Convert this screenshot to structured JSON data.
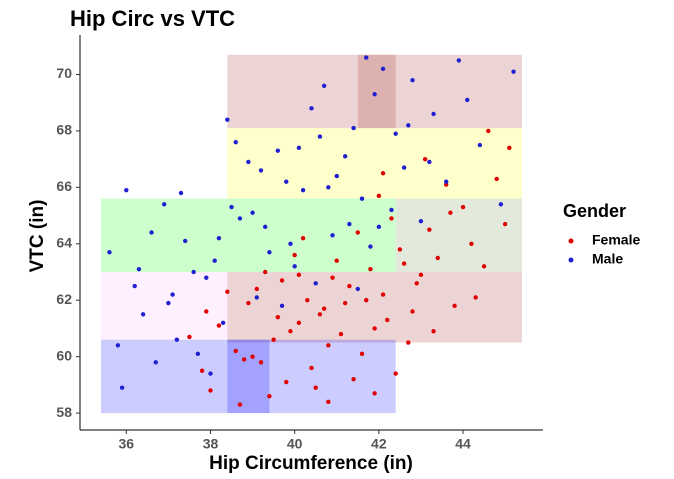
{
  "chart_data": {
    "type": "scatter",
    "title": "Hip Circ vs VTC",
    "x_label": "Hip Circumference (in)",
    "y_label": "VTC (in)",
    "legend_title": "Gender",
    "legend_position": "right",
    "grid": false,
    "xlim": [
      34.9,
      45.9
    ],
    "ylim": [
      57.4,
      71.4
    ],
    "xticks": [
      36,
      38,
      40,
      42,
      44
    ],
    "yticks": [
      58,
      60,
      62,
      64,
      66,
      68,
      70
    ],
    "regions": [
      {
        "x": [
          38.4,
          45.4
        ],
        "y": [
          68.1,
          70.7
        ],
        "color": "#a52a2a",
        "opacity": 0.2
      },
      {
        "x": [
          38.4,
          45.4
        ],
        "y": [
          65.6,
          68.1
        ],
        "color": "#ffff55",
        "opacity": 0.3
      },
      {
        "x": [
          35.4,
          42.4
        ],
        "y": [
          63.0,
          65.6
        ],
        "color": "#00ff00",
        "opacity": 0.2
      },
      {
        "x": [
          42.4,
          45.4
        ],
        "y": [
          63.0,
          65.6
        ],
        "color": "#8fa86a",
        "opacity": 0.25
      },
      {
        "x": [
          38.4,
          45.4
        ],
        "y": [
          60.5,
          63.0
        ],
        "color": "#a52a2a",
        "opacity": 0.2
      },
      {
        "x": [
          35.4,
          38.4
        ],
        "y": [
          60.6,
          63.0
        ],
        "color": "#ffccff",
        "opacity": 0.3
      },
      {
        "x": [
          35.4,
          42.4
        ],
        "y": [
          58.0,
          60.6
        ],
        "color": "#0000ff",
        "opacity": 0.2
      },
      {
        "x": [
          38.4,
          39.4
        ],
        "y": [
          58.0,
          60.6
        ],
        "color": "#0000ff",
        "opacity": 0.2
      },
      {
        "x": [
          41.5,
          42.4
        ],
        "y": [
          68.1,
          70.7
        ],
        "color": "#a52a2a",
        "opacity": 0.2
      }
    ],
    "series": [
      {
        "name": "Female",
        "color": "#e00000",
        "x": [
          40.1,
          41.3,
          39.2,
          42.5,
          40.8,
          38.9,
          41.9,
          43.2,
          39.7,
          40.5,
          42.1,
          44.0,
          38.6,
          41.0,
          39.9,
          42.8,
          40.3,
          43.6,
          37.8,
          41.6,
          39.4,
          42.3,
          40.7,
          44.5,
          38.2,
          41.4,
          43.0,
          39.1,
          40.0,
          42.7,
          45.1,
          38.7,
          41.8,
          40.4,
          43.8,
          39.6,
          42.0,
          41.2,
          37.5,
          44.2,
          40.9,
          39.0,
          42.4,
          43.4,
          41.7,
          38.4,
          40.2,
          44.8,
          39.8,
          42.9,
          41.1,
          43.1,
          38.0,
          40.6,
          42.2,
          44.3,
          39.3,
          41.5,
          43.7,
          40.8,
          37.9,
          42.6,
          45.0,
          39.5,
          41.9,
          43.3,
          40.1,
          44.6,
          38.8,
          42.1
        ],
        "values": [
          61.2,
          62.5,
          59.8,
          63.8,
          60.4,
          61.9,
          61.0,
          64.5,
          62.7,
          58.9,
          62.2,
          65.3,
          60.2,
          63.4,
          60.9,
          61.6,
          62.0,
          66.1,
          59.5,
          60.1,
          58.6,
          64.9,
          61.7,
          63.2,
          61.1,
          59.2,
          62.9,
          62.4,
          63.6,
          60.5,
          67.4,
          58.3,
          63.1,
          59.6,
          61.8,
          61.4,
          65.7,
          61.9,
          60.7,
          64.0,
          62.8,
          60.0,
          59.4,
          63.5,
          62.0,
          62.3,
          64.2,
          66.3,
          59.1,
          62.6,
          60.8,
          67.0,
          58.8,
          61.5,
          61.3,
          62.1,
          63.0,
          64.4,
          65.1,
          58.4,
          61.6,
          63.3,
          64.7,
          60.6,
          58.7,
          60.9,
          62.9,
          68.0,
          59.9,
          66.5
        ]
      },
      {
        "name": "Male",
        "color": "#2020d0",
        "x": [
          36.2,
          37.4,
          38.5,
          39.8,
          40.6,
          41.9,
          35.8,
          37.0,
          38.1,
          39.3,
          40.2,
          41.4,
          42.6,
          36.7,
          37.9,
          39.0,
          40.9,
          42.1,
          43.3,
          35.6,
          36.9,
          38.3,
          39.6,
          41.0,
          42.4,
          44.1,
          37.2,
          38.7,
          40.0,
          41.6,
          43.0,
          45.2,
          36.4,
          38.9,
          40.4,
          41.8,
          43.6,
          37.6,
          39.1,
          40.7,
          42.0,
          44.4,
          35.9,
          37.3,
          38.6,
          39.9,
          41.2,
          42.8,
          36.6,
          38.0,
          39.4,
          40.8,
          42.3,
          43.9,
          37.1,
          38.4,
          39.7,
          41.3,
          42.7,
          36.0,
          37.7,
          39.2,
          40.5,
          41.7,
          43.2,
          44.9,
          36.3,
          38.2,
          40.1,
          41.5
        ],
        "values": [
          62.5,
          64.1,
          65.3,
          66.2,
          67.8,
          69.3,
          60.4,
          61.9,
          63.4,
          64.6,
          65.9,
          68.1,
          66.7,
          59.8,
          62.8,
          65.1,
          64.3,
          70.2,
          68.6,
          63.7,
          65.4,
          61.2,
          67.3,
          66.4,
          67.9,
          69.1,
          60.6,
          64.9,
          63.2,
          65.6,
          64.8,
          70.1,
          61.5,
          66.9,
          68.8,
          63.9,
          66.2,
          63.0,
          62.1,
          69.6,
          64.6,
          67.5,
          58.9,
          65.8,
          67.6,
          64.0,
          67.1,
          69.8,
          64.4,
          59.4,
          63.7,
          66.0,
          65.2,
          70.5,
          62.2,
          68.4,
          61.8,
          64.7,
          68.2,
          65.9,
          60.1,
          66.6,
          62.6,
          70.6,
          66.9,
          65.4,
          63.1,
          64.2,
          67.4,
          62.4
        ]
      }
    ]
  }
}
